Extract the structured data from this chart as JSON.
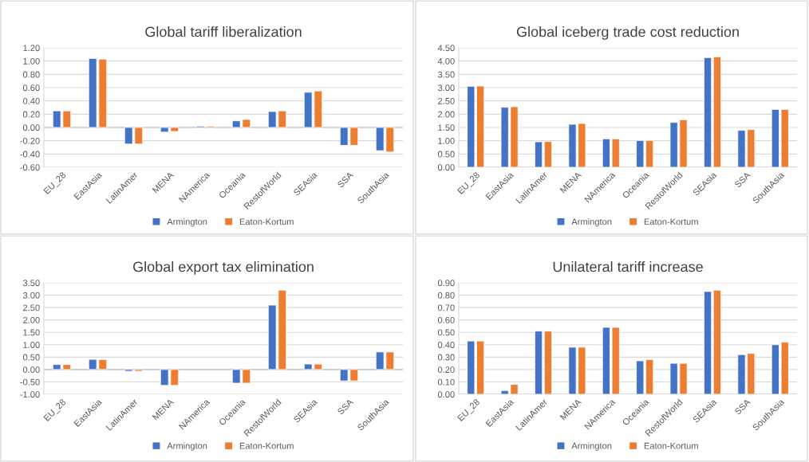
{
  "chart_data": [
    {
      "type": "bar",
      "title": "Global tariff liberalization",
      "categories": [
        "EU_28",
        "EastAsia",
        "LatinAmer",
        "MENA",
        "NAmerica",
        "Oceania",
        "RestofWorld",
        "SEAsia",
        "SSA",
        "SouthAsia"
      ],
      "series": [
        {
          "name": "Armington",
          "color": "#4472c4",
          "values": [
            0.25,
            1.04,
            -0.25,
            -0.07,
            0.02,
            0.1,
            0.24,
            0.53,
            -0.27,
            -0.35
          ]
        },
        {
          "name": "Eaton-Kortum",
          "color": "#ed7d31",
          "values": [
            0.25,
            1.03,
            -0.25,
            -0.06,
            0.02,
            0.12,
            0.25,
            0.55,
            -0.27,
            -0.37
          ]
        }
      ],
      "ylim": [
        -0.6,
        1.2
      ],
      "yticks": [
        {
          "value": -0.6,
          "label": "-0.60"
        },
        {
          "value": -0.4,
          "label": "-0.40"
        },
        {
          "value": -0.2,
          "label": "-0.20"
        },
        {
          "value": 0,
          "label": "0.00"
        },
        {
          "value": 0.2,
          "label": "0.20"
        },
        {
          "value": 0.4,
          "label": "0.40"
        },
        {
          "value": 0.6,
          "label": "0.60"
        },
        {
          "value": 0.8,
          "label": "0.80"
        },
        {
          "value": 1.0,
          "label": "1.00"
        },
        {
          "value": 1.2,
          "label": "1.20"
        }
      ],
      "grid": "y",
      "legend": "bottom"
    },
    {
      "type": "bar",
      "title": "Global iceberg trade cost reduction",
      "categories": [
        "EU_28",
        "EastAsia",
        "LatinAmer",
        "MENA",
        "NAmerica",
        "Oceania",
        "RestofWorld",
        "SEAsia",
        "SSA",
        "SouthAsia"
      ],
      "series": [
        {
          "name": "Armington",
          "color": "#4472c4",
          "values": [
            3.05,
            2.26,
            0.96,
            1.62,
            1.07,
            1.01,
            1.69,
            4.13,
            1.39,
            2.18
          ]
        },
        {
          "name": "Eaton-Kortum",
          "color": "#ed7d31",
          "values": [
            3.06,
            2.28,
            0.97,
            1.65,
            1.07,
            1.01,
            1.79,
            4.16,
            1.42,
            2.18
          ]
        }
      ],
      "ylim": [
        0,
        4.5
      ],
      "yticks": [
        {
          "value": 0,
          "label": "0.00"
        },
        {
          "value": 0.5,
          "label": "0.50"
        },
        {
          "value": 1.0,
          "label": "1.00"
        },
        {
          "value": 1.5,
          "label": "1.50"
        },
        {
          "value": 2.0,
          "label": "2.00"
        },
        {
          "value": 2.5,
          "label": "2.50"
        },
        {
          "value": 3.0,
          "label": "3.00"
        },
        {
          "value": 3.5,
          "label": "3.50"
        },
        {
          "value": 4.0,
          "label": "4.00"
        },
        {
          "value": 4.5,
          "label": "4.50"
        }
      ],
      "grid": "y",
      "legend": "bottom"
    },
    {
      "type": "bar",
      "title": "Global export tax elimination",
      "categories": [
        "EU_28",
        "EastAsia",
        "LatinAmer",
        "MENA",
        "NAmerica",
        "Oceania",
        "RestofWorld",
        "SEAsia",
        "SSA",
        "SouthAsia"
      ],
      "series": [
        {
          "name": "Armington",
          "color": "#4472c4",
          "values": [
            0.2,
            0.41,
            -0.07,
            -0.64,
            null,
            -0.55,
            2.6,
            0.22,
            -0.46,
            0.71
          ]
        },
        {
          "name": "Eaton-Kortum",
          "color": "#ed7d31",
          "values": [
            0.2,
            0.4,
            -0.07,
            -0.64,
            null,
            -0.55,
            3.2,
            0.22,
            -0.46,
            0.71
          ]
        }
      ],
      "ylim": [
        -1.0,
        3.5
      ],
      "yticks": [
        {
          "value": -1.0,
          "label": "-1.00"
        },
        {
          "value": -0.5,
          "label": "-0.50"
        },
        {
          "value": 0,
          "label": "0.00"
        },
        {
          "value": 0.5,
          "label": "0.50"
        },
        {
          "value": 1.0,
          "label": "1.00"
        },
        {
          "value": 1.5,
          "label": "1.50"
        },
        {
          "value": 2.0,
          "label": "2.00"
        },
        {
          "value": 2.5,
          "label": "2.50"
        },
        {
          "value": 3.0,
          "label": "3.00"
        },
        {
          "value": 3.5,
          "label": "3.50"
        }
      ],
      "grid": "y",
      "legend": "bottom"
    },
    {
      "type": "bar",
      "title": "Unilateral tariff increase",
      "categories": [
        "EU_28",
        "EastAsia",
        "LatinAmer",
        "MENA",
        "NAmerica",
        "Oceania",
        "RestofWorld",
        "SEAsia",
        "SSA",
        "SouthAsia"
      ],
      "series": [
        {
          "name": "Armington",
          "color": "#4472c4",
          "values": [
            0.43,
            0.03,
            0.51,
            0.38,
            0.54,
            0.27,
            0.25,
            0.83,
            0.32,
            0.4
          ]
        },
        {
          "name": "Eaton-Kortum",
          "color": "#ed7d31",
          "values": [
            0.43,
            0.08,
            0.51,
            0.38,
            0.54,
            0.28,
            0.25,
            0.84,
            0.33,
            0.42
          ]
        }
      ],
      "ylim": [
        0,
        0.9
      ],
      "yticks": [
        {
          "value": 0,
          "label": "0.00"
        },
        {
          "value": 0.1,
          "label": "0.10"
        },
        {
          "value": 0.2,
          "label": "0.20"
        },
        {
          "value": 0.3,
          "label": "0.30"
        },
        {
          "value": 0.4,
          "label": "0.40"
        },
        {
          "value": 0.5,
          "label": "0.50"
        },
        {
          "value": 0.6,
          "label": "0.60"
        },
        {
          "value": 0.7,
          "label": "0.70"
        },
        {
          "value": 0.8,
          "label": "0.80"
        },
        {
          "value": 0.9,
          "label": "0.90"
        }
      ],
      "grid": "y",
      "legend": "bottom"
    }
  ]
}
